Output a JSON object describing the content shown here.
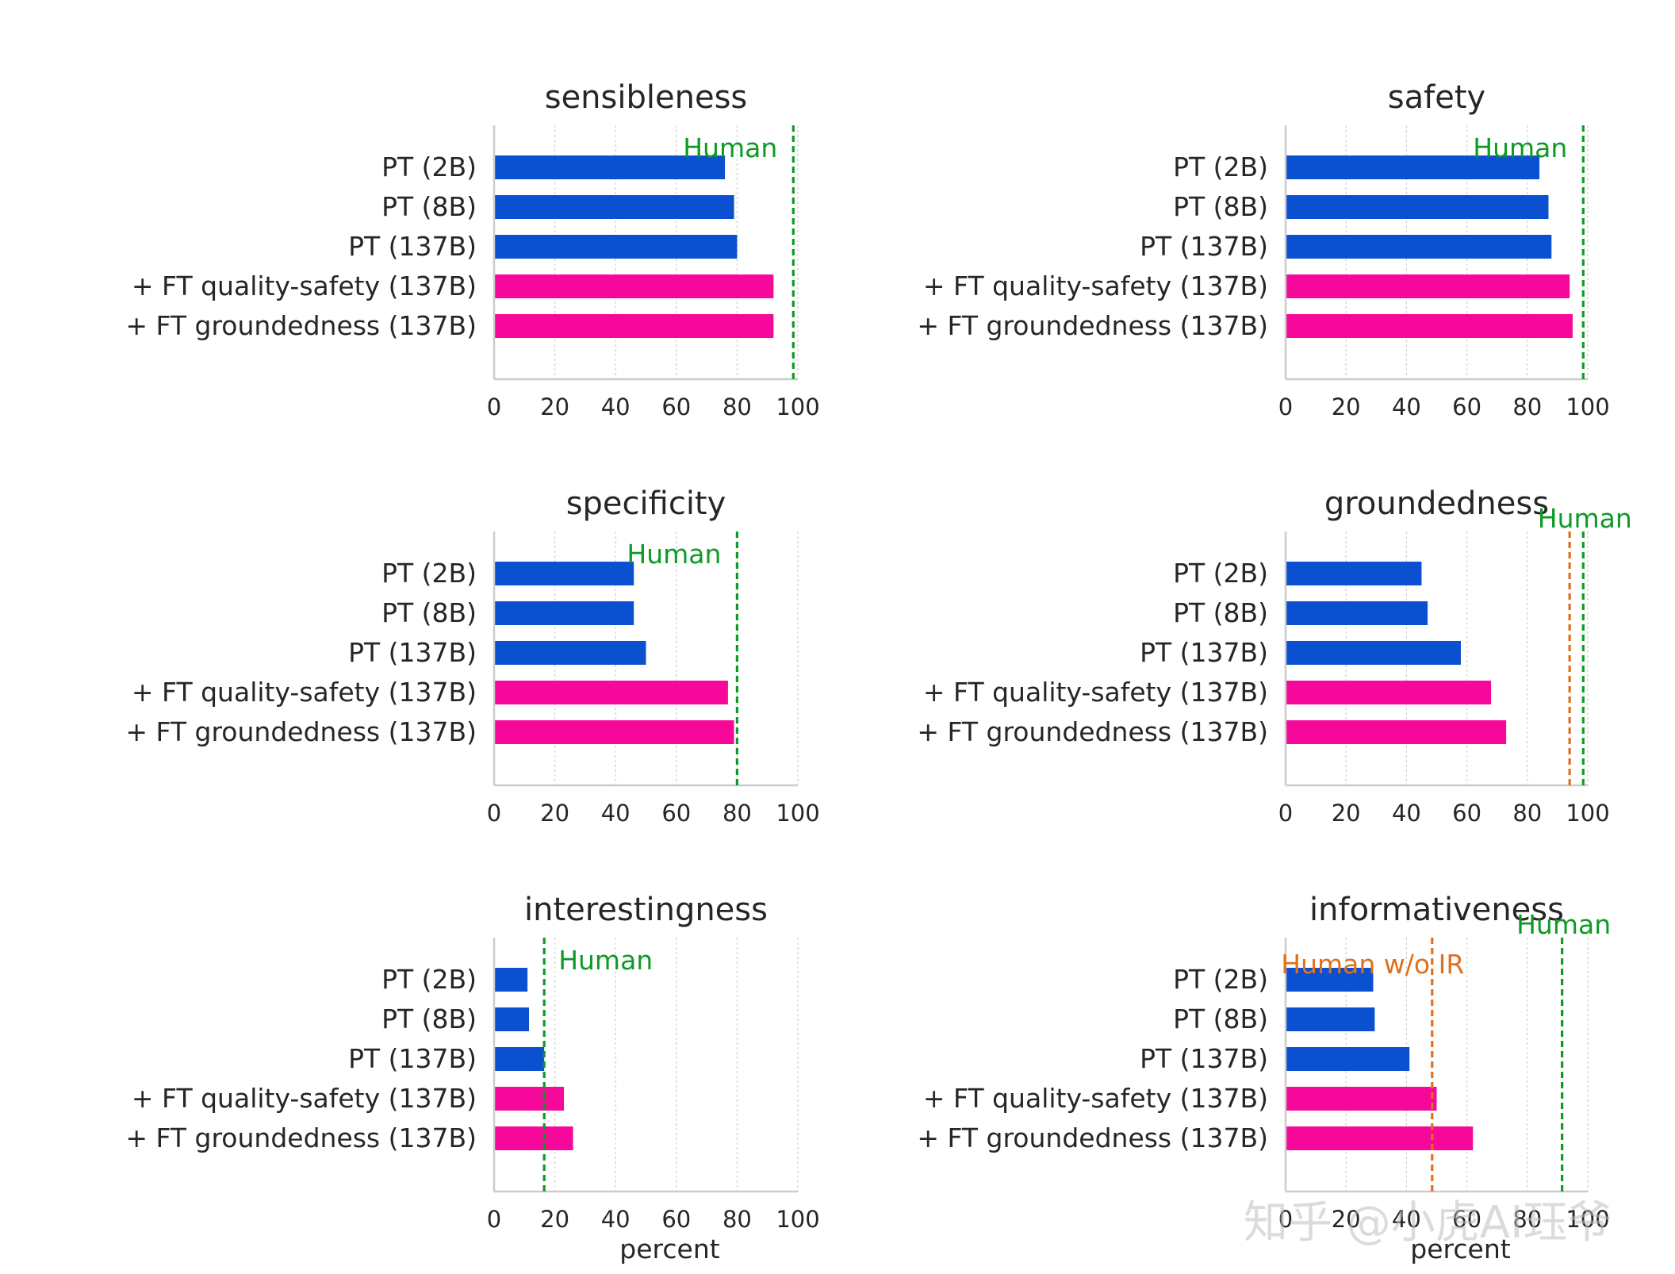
{
  "watermark": "知乎 @小虎AI珏爷",
  "colors": {
    "pt": "#0a50d0",
    "ft": "#f5089a",
    "human": "#0d9a26",
    "human_wo_ir": "#e0701e",
    "text": "#262626"
  },
  "chart_data": [
    {
      "type": "bar",
      "orientation": "horizontal",
      "title": "sensibleness",
      "categories": [
        "PT (2B)",
        "PT (8B)",
        "PT (137B)",
        "+ FT quality-safety (137B)",
        "+ FT groundedness (137B)"
      ],
      "values": [
        76,
        79,
        80,
        92,
        92
      ],
      "xlim": [
        0,
        100
      ],
      "xticks": [
        0,
        20,
        40,
        60,
        80,
        100
      ],
      "xlabel": "",
      "grid": true,
      "references": [
        {
          "label": "Human",
          "value": 98.5,
          "color": "#0d9a26",
          "label_side": "left"
        }
      ]
    },
    {
      "type": "bar",
      "orientation": "horizontal",
      "title": "safety",
      "categories": [
        "PT (2B)",
        "PT (8B)",
        "PT (137B)",
        "+ FT quality-safety (137B)",
        "+ FT groundedness (137B)"
      ],
      "values": [
        84,
        87,
        88,
        94,
        95
      ],
      "xlim": [
        0,
        100
      ],
      "xticks": [
        0,
        20,
        40,
        60,
        80,
        100
      ],
      "xlabel": "",
      "grid": true,
      "references": [
        {
          "label": "Human",
          "value": 98.5,
          "color": "#0d9a26",
          "label_side": "left"
        }
      ]
    },
    {
      "type": "bar",
      "orientation": "horizontal",
      "title": "specificity",
      "categories": [
        "PT (2B)",
        "PT (8B)",
        "PT (137B)",
        "+ FT quality-safety (137B)",
        "+ FT groundedness (137B)"
      ],
      "values": [
        46,
        46,
        50,
        77,
        79
      ],
      "xlim": [
        0,
        100
      ],
      "xticks": [
        0,
        20,
        40,
        60,
        80,
        100
      ],
      "xlabel": "",
      "grid": true,
      "references": [
        {
          "label": "Human",
          "value": 80,
          "color": "#0d9a26",
          "label_side": "left"
        }
      ]
    },
    {
      "type": "bar",
      "orientation": "horizontal",
      "title": "groundedness",
      "categories": [
        "PT (2B)",
        "PT (8B)",
        "PT (137B)",
        "+ FT quality-safety (137B)",
        "+ FT groundedness (137B)"
      ],
      "values": [
        45,
        47,
        58,
        68,
        73
      ],
      "xlim": [
        0,
        100
      ],
      "xticks": [
        0,
        20,
        40,
        60,
        80,
        100
      ],
      "xlabel": "",
      "grid": true,
      "references": [
        {
          "label": "",
          "value": 94,
          "color": "#e0701e",
          "label_side": "none"
        },
        {
          "label": "Human",
          "value": 98.5,
          "color": "#0d9a26",
          "label_side": "center-above"
        }
      ]
    },
    {
      "type": "bar",
      "orientation": "horizontal",
      "title": "interestingness",
      "categories": [
        "PT (2B)",
        "PT (8B)",
        "PT (137B)",
        "+ FT quality-safety (137B)",
        "+ FT groundedness (137B)"
      ],
      "values": [
        11,
        11.5,
        16.5,
        23,
        26
      ],
      "xlim": [
        0,
        100
      ],
      "xticks": [
        0,
        20,
        40,
        60,
        80,
        100
      ],
      "xlabel": "percent",
      "grid": true,
      "references": [
        {
          "label": "Human",
          "value": 16.5,
          "color": "#0d9a26",
          "label_side": "right"
        }
      ]
    },
    {
      "type": "bar",
      "orientation": "horizontal",
      "title": "informativeness",
      "categories": [
        "PT (2B)",
        "PT (8B)",
        "PT (137B)",
        "+ FT quality-safety (137B)",
        "+ FT groundedness (137B)"
      ],
      "values": [
        29,
        29.5,
        41,
        50,
        62
      ],
      "xlim": [
        0,
        100
      ],
      "xticks": [
        0,
        20,
        40,
        60,
        80,
        100
      ],
      "xlabel": "percent",
      "grid": true,
      "references": [
        {
          "label": "Human w/o IR",
          "value": 48.5,
          "color": "#e0701e",
          "label_side": "center-low"
        },
        {
          "label": "Human",
          "value": 91.5,
          "color": "#0d9a26",
          "label_side": "center-above"
        }
      ]
    }
  ]
}
